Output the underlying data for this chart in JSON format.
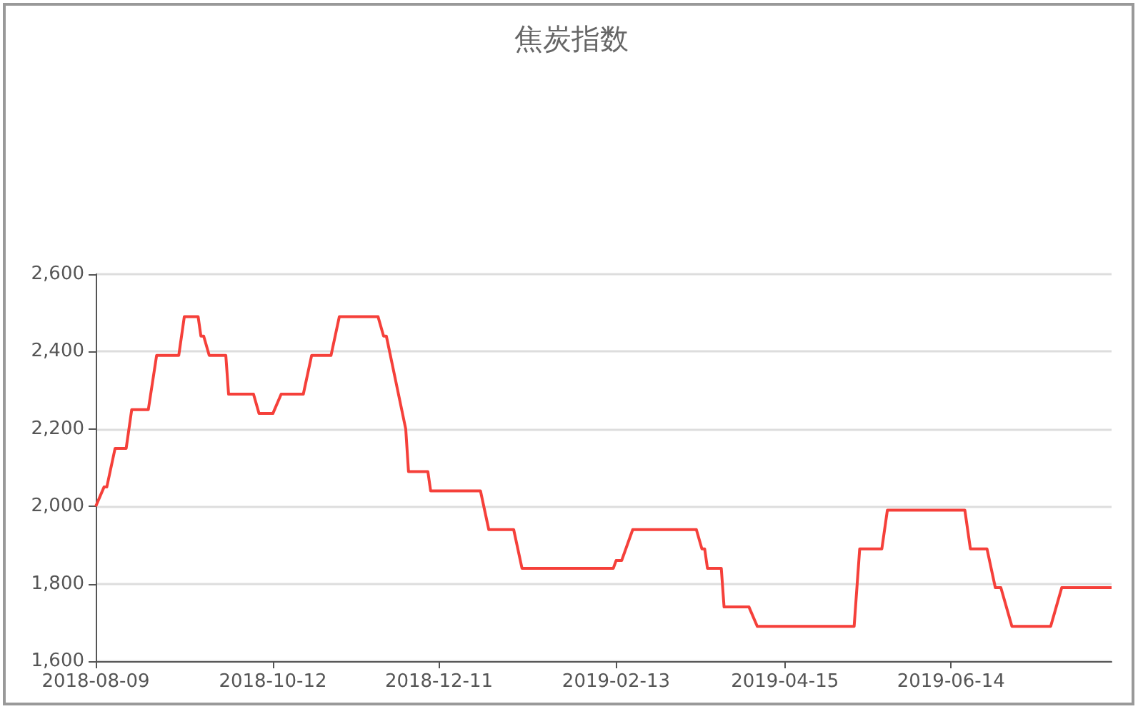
{
  "chart_data": {
    "type": "line",
    "title": "焦炭指数",
    "x": [
      "2018-08-09",
      "2018-08-12",
      "2018-08-13",
      "2018-08-16",
      "2018-08-20",
      "2018-08-22",
      "2018-08-28",
      "2018-08-31",
      "2018-09-08",
      "2018-09-10",
      "2018-09-15",
      "2018-09-16",
      "2018-09-17",
      "2018-09-19",
      "2018-09-25",
      "2018-09-26",
      "2018-10-05",
      "2018-10-07",
      "2018-10-12",
      "2018-10-15",
      "2018-10-23",
      "2018-10-26",
      "2018-11-02",
      "2018-11-05",
      "2018-11-19",
      "2018-11-21",
      "2018-11-22",
      "2018-11-29",
      "2018-11-30",
      "2018-12-07",
      "2018-12-08",
      "2018-12-11",
      "2018-12-26",
      "2018-12-29",
      "2019-01-07",
      "2019-01-10",
      "2019-02-12",
      "2019-02-13",
      "2019-02-15",
      "2019-02-19",
      "2019-03-14",
      "2019-03-16",
      "2019-03-17",
      "2019-03-18",
      "2019-03-23",
      "2019-03-24",
      "2019-04-02",
      "2019-04-05",
      "2019-04-15",
      "2019-05-10",
      "2019-05-12",
      "2019-05-20",
      "2019-05-22",
      "2019-06-14",
      "2019-06-19",
      "2019-06-21",
      "2019-06-27",
      "2019-06-30",
      "2019-07-02",
      "2019-07-04",
      "2019-07-06",
      "2019-07-20",
      "2019-07-22",
      "2019-07-24",
      "2019-08-11"
    ],
    "series": [
      {
        "color": "#f5403a",
        "values": [
          2000,
          2050,
          2050,
          2150,
          2150,
          2250,
          2250,
          2390,
          2390,
          2490,
          2490,
          2440,
          2440,
          2390,
          2390,
          2290,
          2290,
          2240,
          2240,
          2290,
          2290,
          2390,
          2390,
          2490,
          2490,
          2440,
          2440,
          2200,
          2090,
          2090,
          2040,
          2040,
          2040,
          1940,
          1940,
          1840,
          1840,
          1860,
          1860,
          1940,
          1940,
          1890,
          1890,
          1840,
          1840,
          1740,
          1740,
          1690,
          1690,
          1690,
          1890,
          1890,
          1990,
          1990,
          1990,
          1890,
          1890,
          1790,
          1790,
          1740,
          1690,
          1690,
          1740,
          1790,
          1790
        ]
      }
    ],
    "xlim": [
      "2018-08-09",
      "2019-08-11"
    ],
    "xticks": [
      "2018-08-09",
      "2018-10-12",
      "2018-12-11",
      "2019-02-13",
      "2019-04-15",
      "2019-06-14"
    ],
    "ylim": [
      1600,
      2600
    ],
    "yticks": [
      {
        "value": 1600,
        "label": "1,600"
      },
      {
        "value": 1800,
        "label": "1,800"
      },
      {
        "value": 2000,
        "label": "2,000"
      },
      {
        "value": 2200,
        "label": "2,200"
      },
      {
        "value": 2400,
        "label": "2,400"
      },
      {
        "value": 2600,
        "label": "2,600"
      }
    ],
    "grid": "y"
  }
}
